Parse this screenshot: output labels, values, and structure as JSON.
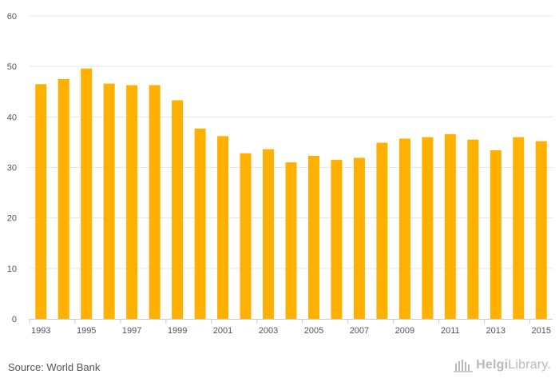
{
  "chart_data": {
    "type": "bar",
    "categories": [
      "1993",
      "1994",
      "1995",
      "1996",
      "1997",
      "1998",
      "1999",
      "2000",
      "2001",
      "2002",
      "2003",
      "2004",
      "2005",
      "2006",
      "2007",
      "2008",
      "2009",
      "2010",
      "2011",
      "2012",
      "2013",
      "2014",
      "2015"
    ],
    "x_tick_labels": [
      "1993",
      "",
      "1995",
      "",
      "1997",
      "",
      "1999",
      "",
      "2001",
      "",
      "2003",
      "",
      "2005",
      "",
      "2007",
      "",
      "2009",
      "",
      "2011",
      "",
      "2013",
      "",
      "2015"
    ],
    "values": [
      46.5,
      47.5,
      49.6,
      46.6,
      46.3,
      46.3,
      43.3,
      37.7,
      36.2,
      32.8,
      33.6,
      31.0,
      32.3,
      31.5,
      31.9,
      34.9,
      35.7,
      36.0,
      36.6,
      35.5,
      33.4,
      36.0,
      35.2
    ],
    "ylim": [
      0,
      60
    ],
    "yticks": [
      0,
      10,
      20,
      30,
      40,
      50,
      60
    ],
    "grid": true,
    "bar_color": "#FFB000",
    "title": "",
    "xlabel": "",
    "ylabel": ""
  },
  "footer": {
    "source": "Source: World Bank",
    "logo_text_1": "Helgi",
    "logo_text_2": "Library."
  }
}
